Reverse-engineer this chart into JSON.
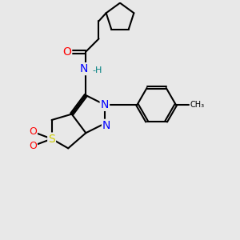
{
  "bg_color": "#e8e8e8",
  "bond_color": "#000000",
  "atom_colors": {
    "O": "#ff0000",
    "N": "#0000ff",
    "S": "#cccc00",
    "H": "#008080",
    "C": "#000000"
  },
  "font_size": 9,
  "line_width": 1.5
}
